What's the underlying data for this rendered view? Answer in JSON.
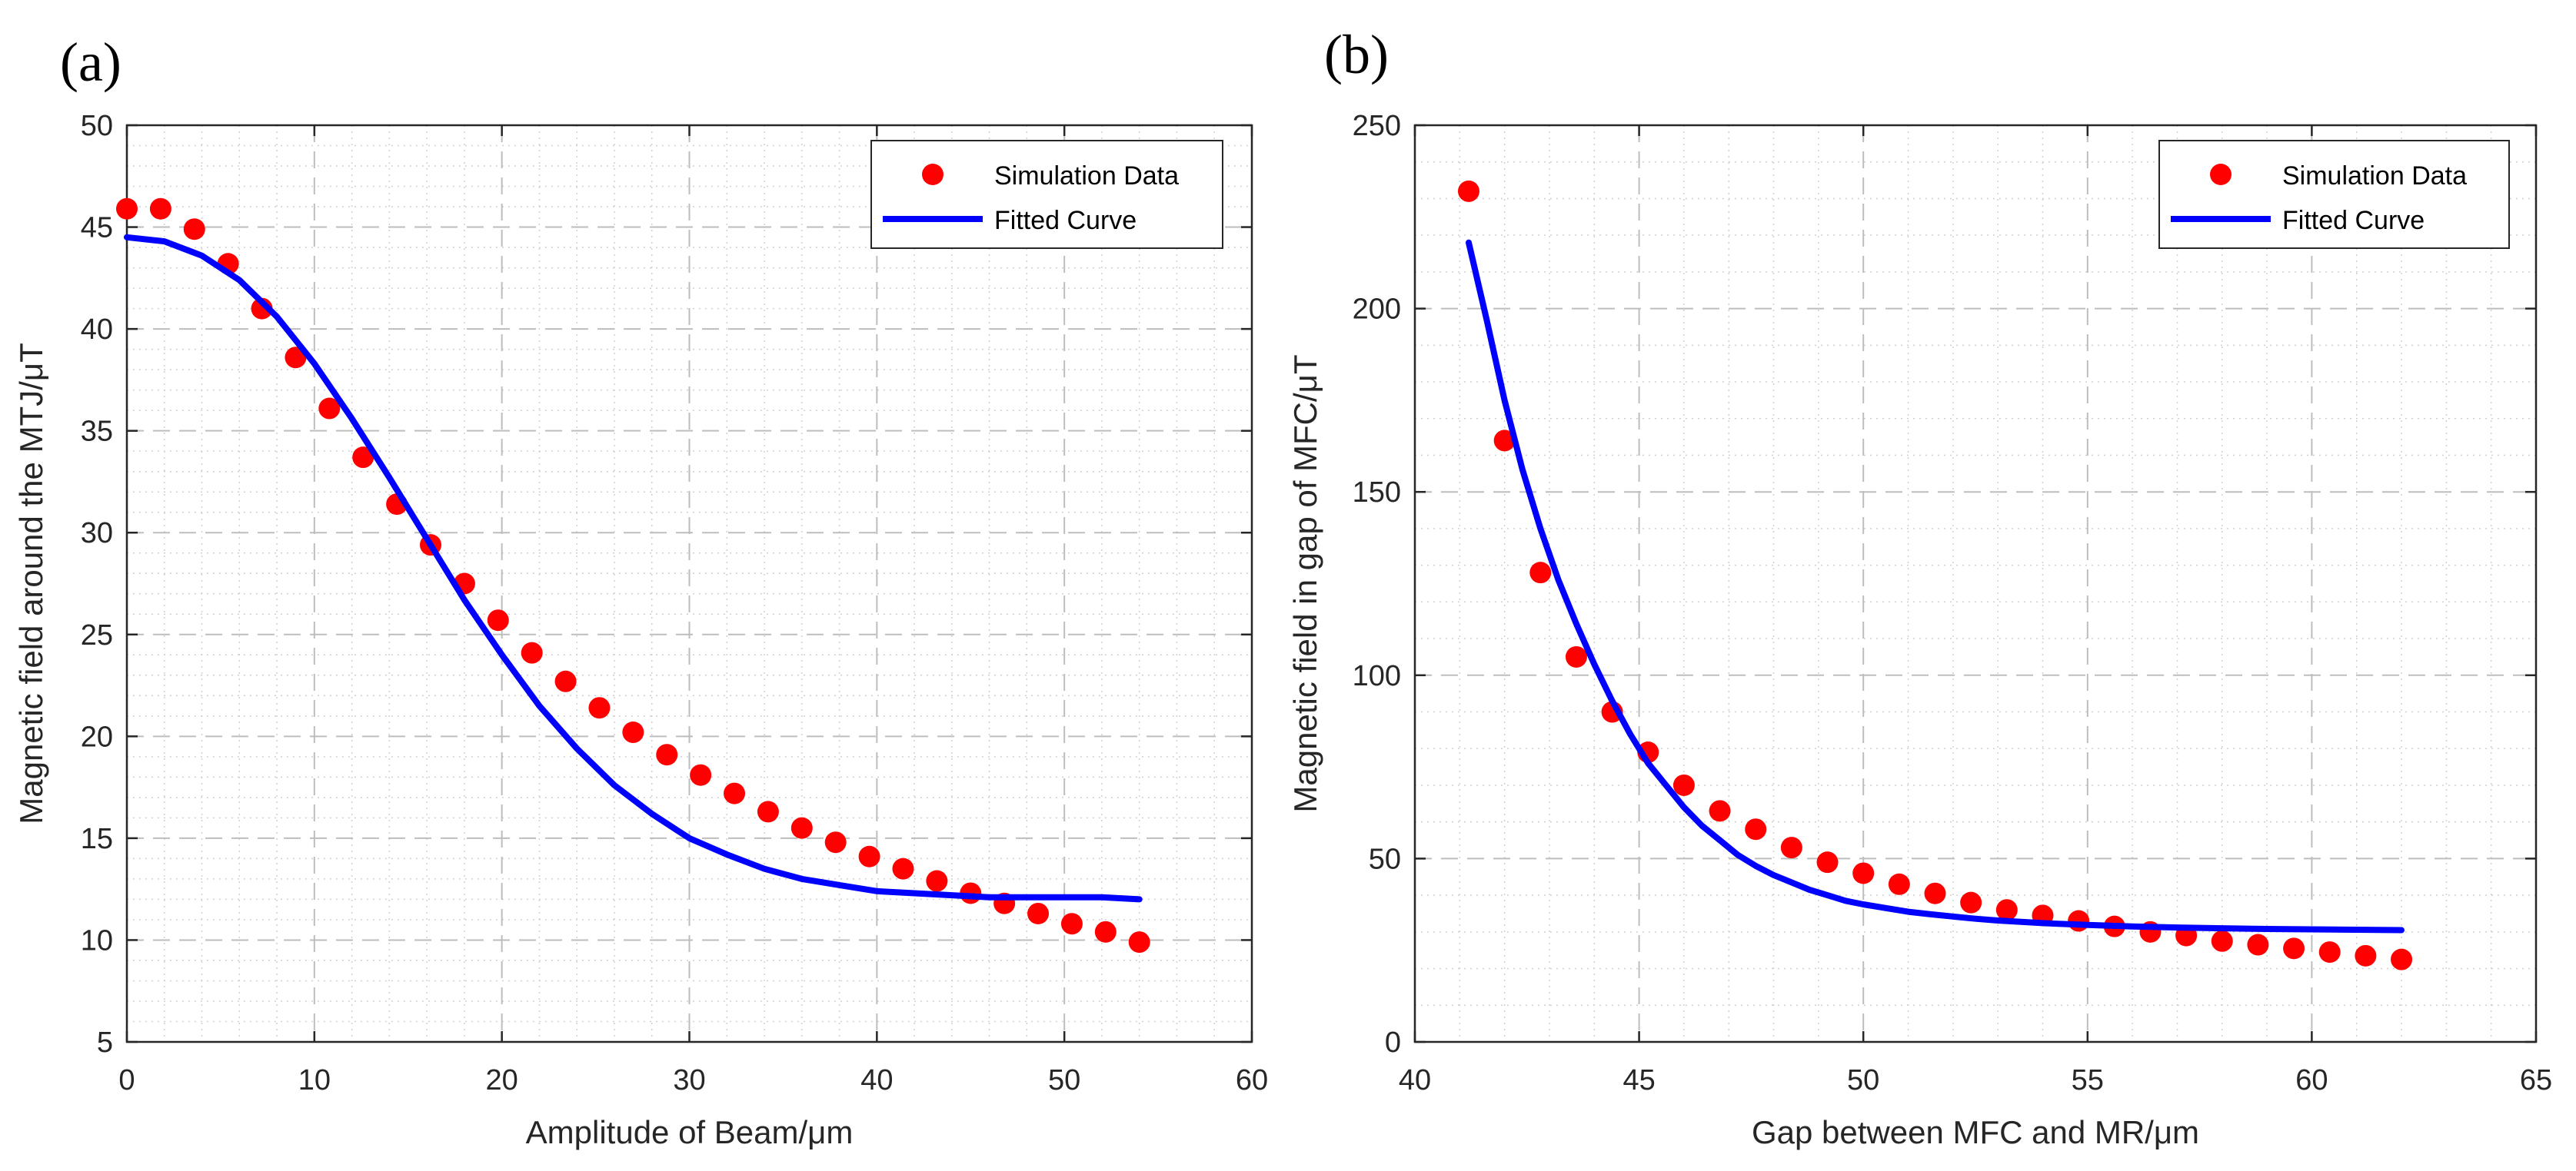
{
  "chart_data": [
    {
      "type": "scatter",
      "panel_label": "(a)",
      "xlabel": "Amplitude of Beam/μm",
      "ylabel": "Magnetic field around the MTJ/μT",
      "xlim": [
        0,
        60
      ],
      "ylim": [
        5,
        50
      ],
      "xticks": [
        0,
        10,
        20,
        30,
        40,
        50,
        60
      ],
      "yticks": [
        5,
        10,
        15,
        20,
        25,
        30,
        35,
        40,
        45,
        50
      ],
      "grid": true,
      "minor_grid": true,
      "legend_position": "top-right",
      "series": [
        {
          "name": "Simulation Data",
          "kind": "scatter",
          "color": "#ff0000",
          "x": [
            0,
            1.8,
            3.6,
            5.4,
            7.2,
            9.0,
            10.8,
            12.6,
            14.4,
            16.2,
            18.0,
            19.8,
            21.6,
            23.4,
            25.2,
            27.0,
            28.8,
            30.6,
            32.4,
            34.2,
            36.0,
            37.8,
            39.6,
            41.4,
            43.2,
            45.0,
            46.8,
            48.6,
            50.4,
            52.2,
            54.0
          ],
          "y": [
            45.9,
            45.9,
            44.9,
            43.2,
            41.0,
            38.6,
            36.1,
            33.7,
            31.4,
            29.4,
            27.5,
            25.7,
            24.1,
            22.7,
            21.4,
            20.2,
            19.1,
            18.1,
            17.2,
            16.3,
            15.5,
            14.8,
            14.1,
            13.5,
            12.9,
            12.3,
            11.8,
            11.3,
            10.8,
            10.4,
            9.9
          ]
        },
        {
          "name": "Fitted Curve",
          "kind": "line",
          "color": "#0000ff",
          "x": [
            0,
            2,
            4,
            6,
            8,
            10,
            12,
            14,
            16,
            18,
            20,
            22,
            24,
            26,
            28,
            30,
            32,
            34,
            36,
            38,
            40,
            42,
            44,
            46,
            48,
            50,
            52,
            54
          ],
          "y": [
            44.5,
            44.3,
            43.6,
            42.4,
            40.6,
            38.3,
            35.6,
            32.7,
            29.7,
            26.7,
            24.0,
            21.5,
            19.4,
            17.6,
            16.2,
            15.0,
            14.2,
            13.5,
            13.0,
            12.7,
            12.4,
            12.3,
            12.2,
            12.1,
            12.1,
            12.1,
            12.1,
            12.0
          ]
        }
      ]
    },
    {
      "type": "scatter",
      "panel_label": "(b)",
      "xlabel": "Gap between MFC and MR/μm",
      "ylabel": "Magnetic field in gap of MFC/μT",
      "xlim": [
        40,
        65
      ],
      "ylim": [
        0,
        250
      ],
      "xticks": [
        40,
        45,
        50,
        55,
        60,
        65
      ],
      "yticks": [
        0,
        50,
        100,
        150,
        200,
        250
      ],
      "grid": true,
      "minor_grid": true,
      "legend_position": "top-right",
      "series": [
        {
          "name": "Simulation Data",
          "kind": "scatter",
          "color": "#ff0000",
          "x": [
            41.2,
            42.0,
            42.8,
            43.6,
            44.4,
            45.2,
            46.0,
            46.8,
            47.6,
            48.4,
            49.2,
            50.0,
            50.8,
            51.6,
            52.4,
            53.2,
            54.0,
            54.8,
            55.6,
            56.4,
            57.2,
            58.0,
            58.8,
            59.6,
            60.4,
            61.2,
            62.0
          ],
          "y": [
            232,
            164,
            128,
            105,
            90,
            79,
            70,
            63,
            58,
            53,
            49,
            46,
            43,
            40.5,
            38,
            36,
            34.5,
            33,
            31.5,
            30,
            29,
            27.5,
            26.5,
            25.5,
            24.5,
            23.5,
            22.5
          ]
        },
        {
          "name": "Fitted Curve",
          "kind": "line",
          "color": "#0000ff",
          "x": [
            41.2,
            41.6,
            42.0,
            42.4,
            42.8,
            43.2,
            43.6,
            44.0,
            44.4,
            44.8,
            45.2,
            45.6,
            46.0,
            46.4,
            46.8,
            47.2,
            47.6,
            48.0,
            48.4,
            48.8,
            49.2,
            49.6,
            50.0,
            50.5,
            51.0,
            51.5,
            52.0,
            52.5,
            53.0,
            54.0,
            55.0,
            56.0,
            57.0,
            58.0,
            59.0,
            60.0,
            61.0,
            62.0
          ],
          "y": [
            218,
            197,
            175,
            156,
            140,
            126,
            114,
            103,
            93,
            84,
            76,
            70,
            64,
            59,
            55,
            51,
            48,
            45.5,
            43.5,
            41.5,
            40,
            38.5,
            37.5,
            36.5,
            35.5,
            34.8,
            34.2,
            33.6,
            33.1,
            32.4,
            31.9,
            31.5,
            31.2,
            31.0,
            30.8,
            30.7,
            30.6,
            30.5
          ]
        }
      ]
    }
  ]
}
